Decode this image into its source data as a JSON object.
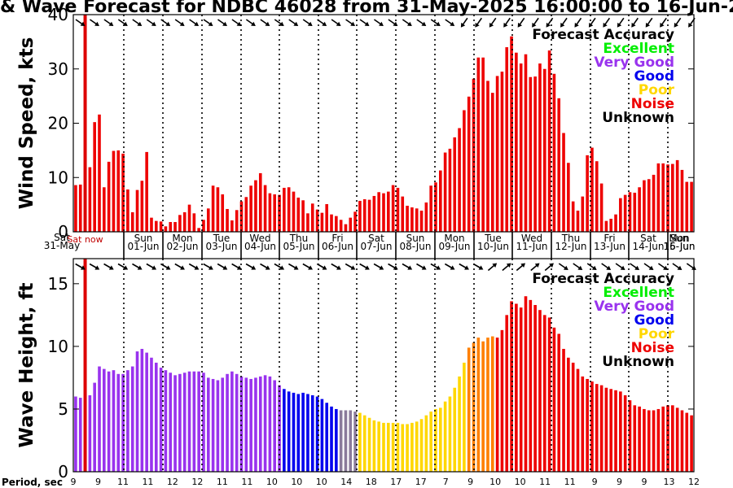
{
  "title": "& Wave Forecast for NDBC 46028 from 31-May-2025 16:00:00 to 16-Jun-2025",
  "period_label": "Period, sec",
  "colors": {
    "excellent": "#00ee00",
    "very_good": "#9933ee",
    "good": "#0000ee",
    "poor": "#ffd700",
    "noise": "#ee0000",
    "unknown": "#000000",
    "bar_red": "#ee0000",
    "now_line": "#dd0000"
  },
  "chart_data": [
    {
      "type": "bar",
      "name": "wind",
      "ylabel": "Wind Speed, kts",
      "ylim": [
        0,
        40
      ],
      "yticks": [
        0,
        10,
        20,
        30,
        40
      ],
      "values": [
        8.6,
        8.7,
        0,
        11.9,
        20.2,
        21.6,
        8.2,
        12.9,
        14.9,
        15,
        14.4,
        7.8,
        3.6,
        7.7,
        9.4,
        14.7,
        2.6,
        2,
        1.9,
        1,
        1.8,
        1.8,
        3.1,
        3.6,
        5,
        3.4,
        0.7,
        2.2,
        4.3,
        8.5,
        8.2,
        6.9,
        4.2,
        2.1,
        4,
        5.6,
        6.4,
        8.5,
        9.5,
        10.8,
        8.6,
        7.1,
        6.9,
        6.8,
        8.1,
        8.2,
        7.4,
        6.3,
        5.8,
        3.4,
        5.2,
        4.1,
        3.5,
        5.1,
        3.2,
        2.9,
        2.2,
        1.4,
        2.6,
        3.7,
        5.7,
        6,
        5.9,
        6.6,
        7.3,
        7.1,
        7.4,
        8.6,
        8.1,
        6.5,
        4.8,
        4.5,
        4.3,
        3.9,
        5.4,
        8.5,
        9.1,
        11.3,
        14.6,
        15.3,
        17.4,
        19.1,
        22.4,
        24.9,
        28.2,
        32.1,
        32.1,
        27.8,
        25.6,
        28.7,
        29.5,
        34,
        36,
        33,
        31,
        32.7,
        28.5,
        28.6,
        31,
        30,
        33.4,
        29.1,
        24.6,
        18.2,
        12.7,
        5.6,
        3.9,
        6.5,
        14.1,
        15.5,
        13,
        8.9,
        2,
        2.4,
        3.2,
        6.2,
        6.8,
        7.3,
        7.2,
        8.2,
        9.5,
        9.7,
        10.5,
        12.6,
        12.6,
        12.4,
        12.5,
        13.2,
        11.4,
        9.2,
        9.2
      ],
      "day_labels": [
        {
          "day": "Sun",
          "date": "01-Jun"
        },
        {
          "day": "Mon",
          "date": "02-Jun"
        },
        {
          "day": "Tue",
          "date": "03-Jun"
        },
        {
          "day": "Wed",
          "date": "04-Jun"
        },
        {
          "day": "Thu",
          "date": "05-Jun"
        },
        {
          "day": "Fri",
          "date": "06-Jun"
        },
        {
          "day": "Sat",
          "date": "07-Jun"
        },
        {
          "day": "Sun",
          "date": "08-Jun"
        },
        {
          "day": "Mon",
          "date": "09-Jun"
        },
        {
          "day": "Tue",
          "date": "10-Jun"
        },
        {
          "day": "Wed",
          "date": "11-Jun"
        },
        {
          "day": "Thu",
          "date": "12-Jun"
        },
        {
          "day": "Fri",
          "date": "13-Jun"
        },
        {
          "day": "Sat",
          "date": "14-Jun"
        },
        {
          "day": "Sun",
          "date": "15-Jun"
        },
        {
          "day": "Mon",
          "date": "16-Jun"
        }
      ],
      "start_labels": {
        "day": "Sat",
        "date": "31-May"
      },
      "legend": {
        "title": "Forecast Accuracy",
        "items": [
          {
            "label": "Excellent",
            "color": "#00ee00"
          },
          {
            "label": "Very Good",
            "color": "#9933ee"
          },
          {
            "label": "Good",
            "color": "#0000ee"
          },
          {
            "label": "Poor",
            "color": "#ffd700"
          },
          {
            "label": "Noise",
            "color": "#ee0000"
          },
          {
            "label": "Unknown",
            "color": "#000000"
          }
        ]
      }
    },
    {
      "type": "bar",
      "name": "wave",
      "ylabel": "Wave Height, ft",
      "ylim": [
        0,
        17
      ],
      "yticks": [
        0,
        5,
        10,
        15
      ],
      "values": [
        6,
        5.9,
        0,
        6.1,
        7.1,
        8.4,
        8.2,
        8,
        8.1,
        7.8,
        7.8,
        8.1,
        8.4,
        9.6,
        9.8,
        9.5,
        9.1,
        8.7,
        8.3,
        8.1,
        7.9,
        7.7,
        7.8,
        7.9,
        8,
        8,
        8,
        7.9,
        7.5,
        7.4,
        7.3,
        7.5,
        7.8,
        8,
        7.8,
        7.6,
        7.5,
        7.4,
        7.5,
        7.6,
        7.7,
        7.6,
        7.3,
        6.9,
        6.6,
        6.4,
        6.3,
        6.2,
        6.3,
        6.2,
        6.1,
        6,
        5.8,
        5.5,
        5.2,
        5,
        4.9,
        4.9,
        4.9,
        4.8,
        4.7,
        4.5,
        4.3,
        4.1,
        4,
        3.9,
        3.9,
        3.9,
        3.9,
        3.8,
        3.8,
        3.9,
        4,
        4.2,
        4.5,
        4.8,
        5,
        5.1,
        5.6,
        6,
        6.7,
        7.6,
        8.7,
        9.9,
        10.3,
        10.7,
        10.4,
        10.7,
        10.8,
        10.7,
        11.3,
        12.5,
        13.6,
        13.4,
        13.1,
        14,
        13.7,
        13.3,
        12.9,
        12.5,
        12.3,
        11.5,
        11,
        9.8,
        9.1,
        8.7,
        8.2,
        7.6,
        7.4,
        7.2,
        7,
        6.9,
        6.7,
        6.6,
        6.5,
        6.4,
        6.1,
        5.7,
        5.3,
        5.2,
        5,
        4.9,
        4.9,
        5,
        5.2,
        5.3,
        5.3,
        5.1,
        4.9,
        4.7,
        4.5
      ],
      "class_codes": "OOUOOOOOOOOOOOOOOOOOOOOOOOOOOOOOOOOOOOOOOOOOGGGGGGGGGGGGTTTTPPPPPPPPPPPPPPPPPPPPPPPHHHHHHRRRRRRRRRRRRRRRRRRRRRRRRRRRRRRRRRRRRRRRRRRRRRRRRR",
      "class_color_map": {
        "O": "#9933ee",
        "G": "#0000ee",
        "T": "#8a7a9a",
        "P": "#ffd700",
        "H": "#ff8000",
        "R": "#ee0000",
        "U": "#ffffff"
      },
      "legend": {
        "title": "Forecast Accuracy",
        "items": [
          {
            "label": "Excellent",
            "color": "#00ee00"
          },
          {
            "label": "Very Good",
            "color": "#9933ee"
          },
          {
            "label": "Good",
            "color": "#0000ee"
          },
          {
            "label": "Poor",
            "color": "#ffd700"
          },
          {
            "label": "Noise",
            "color": "#ee0000"
          },
          {
            "label": "Unknown",
            "color": "#000000"
          }
        ]
      },
      "period_ticks": [
        "9",
        "9",
        "11",
        "11",
        "12",
        "12",
        "11",
        "11",
        "10",
        "10",
        "10",
        "14",
        "18",
        "17",
        "17",
        "7",
        "9",
        "10",
        "10",
        "11",
        "11",
        "9",
        "9",
        "9",
        "13",
        "12"
      ],
      "now_label": "Sat now"
    }
  ]
}
